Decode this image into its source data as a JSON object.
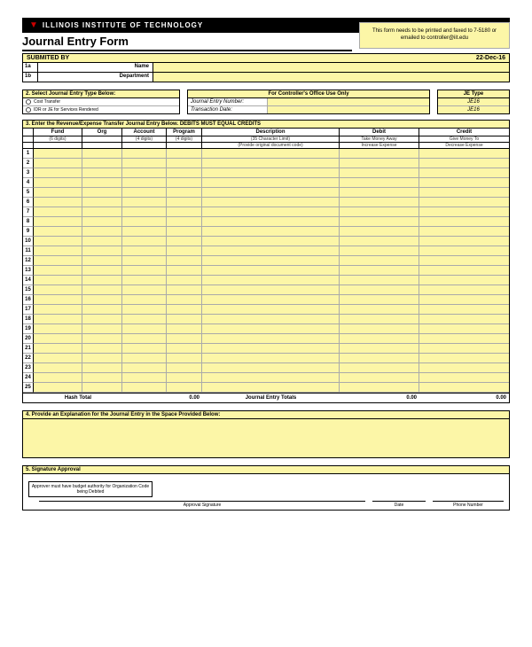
{
  "colors": {
    "yellow": "#fcf6a7",
    "black": "#000000",
    "red": "#cc0000"
  },
  "header": {
    "institution": "ILLINOIS INSTITUTE OF TECHNOLOGY",
    "title": "Journal Entry Form",
    "notice": "This form needs to be printed and faxed to 7-5180 or emailed to controller@iit.edu"
  },
  "submitted": {
    "label": "SUBMITED BY",
    "date": "22-Dec-16",
    "rows": [
      {
        "code": "1a",
        "label": "Name"
      },
      {
        "code": "1b",
        "label": "Department"
      }
    ]
  },
  "section2": {
    "left_header": "2.  Select Journal Entry Type Below:",
    "options": [
      "Cost Transfer",
      "IDR or JE for Services Rendered"
    ],
    "mid_header": "For Controller's Office Use Only",
    "mid_rows": [
      "Journal Entry Number:",
      "Transaction Date:"
    ],
    "right_header": "JE Type",
    "right_values": [
      "JE16",
      "JE16"
    ]
  },
  "section3": {
    "header": "3.  Enter the Revenue/Expense Transfer Journal Entry Below. DEBITS MUST EQUAL CREDITS",
    "columns": [
      "Fund",
      "Org",
      "Account",
      "Program",
      "Description",
      "Debit",
      "Credit"
    ],
    "sub": [
      "(6 digits)",
      "",
      "(4 digits)",
      "(4 digits)",
      "(35 Character Limit)",
      "Take Money Away",
      "Give Money To"
    ],
    "sub2_desc": "(Provide original document code)",
    "sub2_debit": "Increase Expense",
    "sub2_credit": "Decrease Expense",
    "row_count": 25,
    "totals": {
      "hash_label": "Hash Total",
      "hash_value": "0.00",
      "je_label": "Journal Entry Totals",
      "debit_total": "0.00",
      "credit_total": "0.00"
    }
  },
  "section4": {
    "header": "4.  Provide an Explanation for the Journal Entry in the Space Provided Below:"
  },
  "section5": {
    "header": "5.  Signature Approval",
    "note": "Approver must have budget authority for Organization Code being Debited",
    "sig_labels": [
      "Approval Signature",
      "Date",
      "Phone Number"
    ]
  }
}
